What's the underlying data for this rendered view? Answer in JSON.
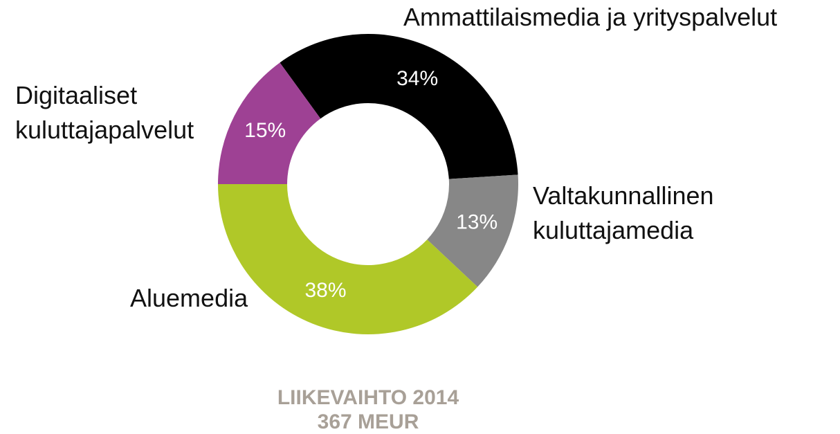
{
  "chart_data": {
    "type": "donut",
    "title": "LIIKEVAIHTO 2014",
    "subtitle": "367 MEUR",
    "categories": [
      "Ammattilaismedia ja yrityspalvelut",
      "Valtakunnallinen kuluttajamedia",
      "Aluemedia",
      "Digitaaliset kuluttajapalvelut"
    ],
    "values": [
      34,
      13,
      38,
      15
    ],
    "value_labels": [
      "34%",
      "13%",
      "38%",
      "15%"
    ],
    "colors": [
      "#000000",
      "#878787",
      "#b0c828",
      "#9e4194"
    ]
  }
}
